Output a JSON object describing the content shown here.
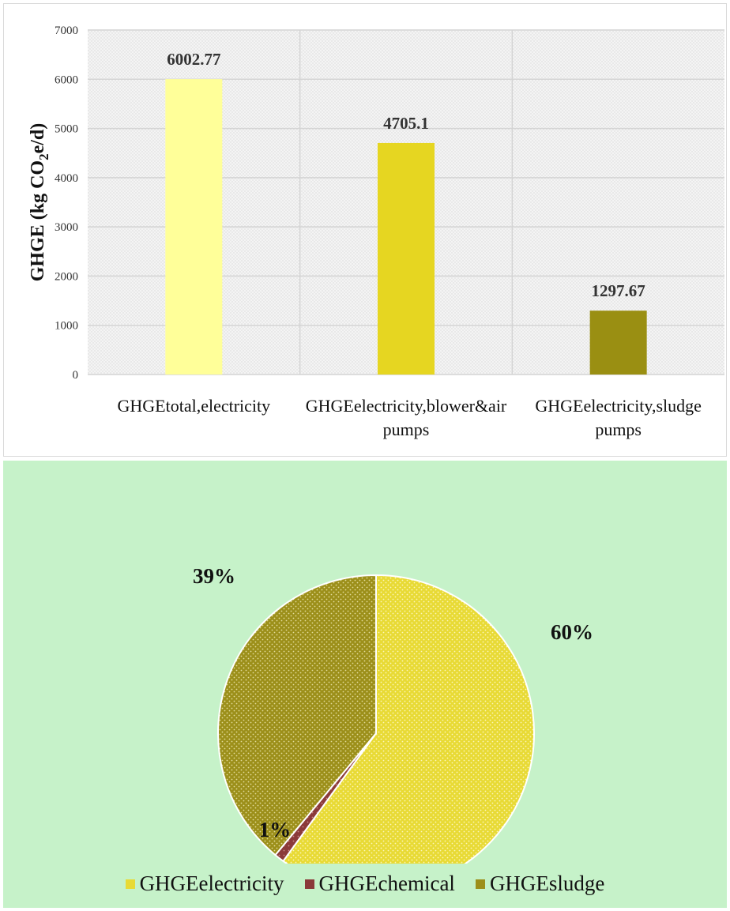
{
  "charts": [
    {
      "type": "bar",
      "ylabel": "GHGE  (kg CO",
      "ylabel_sub": "2",
      "ylabel_tail": "e/d)",
      "ylim": [
        0,
        7000
      ],
      "yticks": [
        "0",
        "1000",
        "2000",
        "3000",
        "4000",
        "5000",
        "6000",
        "7000"
      ],
      "grid": true,
      "categories": [
        [
          "GHGEtotal,electricity"
        ],
        [
          "GHGEelectricity,blower&air",
          "pumps"
        ],
        [
          "GHGEelectricity,sludge",
          "pumps"
        ]
      ],
      "values": [
        6002.77,
        4705.1,
        1297.67
      ],
      "value_labels": [
        "6002.77",
        "4705.1",
        "1297.67"
      ],
      "colors": [
        "#ffff99",
        "#e6d621",
        "#9a8f12"
      ]
    },
    {
      "type": "pie",
      "slices": [
        {
          "name": "GHGEelectricity",
          "value": 60,
          "label": "60%",
          "color": "#e8da35"
        },
        {
          "name": "GHGEchemical",
          "value": 1,
          "label": "1%",
          "color": "#8b3a3a"
        },
        {
          "name": "GHGEsludge",
          "value": 39,
          "label": "39%",
          "color": "#9c8f1a"
        }
      ],
      "legend": "bottom"
    }
  ]
}
